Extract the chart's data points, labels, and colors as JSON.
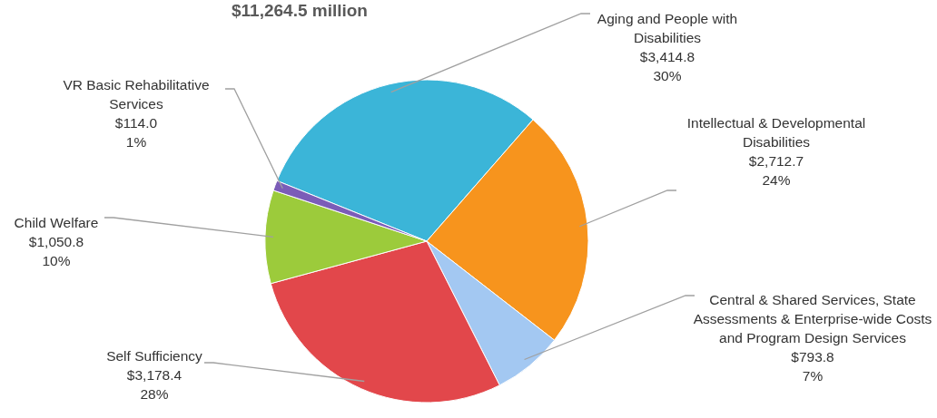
{
  "chart_data": {
    "type": "pie",
    "title": "$11,264.5 million",
    "categories": [
      "Aging and People with Disabilities",
      "Intellectual & Developmental Disabilities",
      "Central & Shared Services, State Assessments & Enterprise-wide Costs and  Program Design Services",
      "Self Sufficiency",
      "Child Welfare",
      "VR Basic Rehabilitative Services"
    ],
    "values": [
      3414.8,
      2712.7,
      793.8,
      3178.4,
      1050.8,
      114.0
    ],
    "colors": [
      "#3bb5d8",
      "#f7941d",
      "#a3c8f2",
      "#e2474b",
      "#9ccb3b",
      "#7b5cb8"
    ],
    "value_labels": [
      "$3,414.8",
      "$2,712.7",
      "$793.8",
      "$3,178.4",
      "$1,050.8",
      "$114.0"
    ],
    "annotations": [
      "30%",
      "24%",
      "7%",
      "28%",
      "10%",
      "1%"
    ]
  }
}
